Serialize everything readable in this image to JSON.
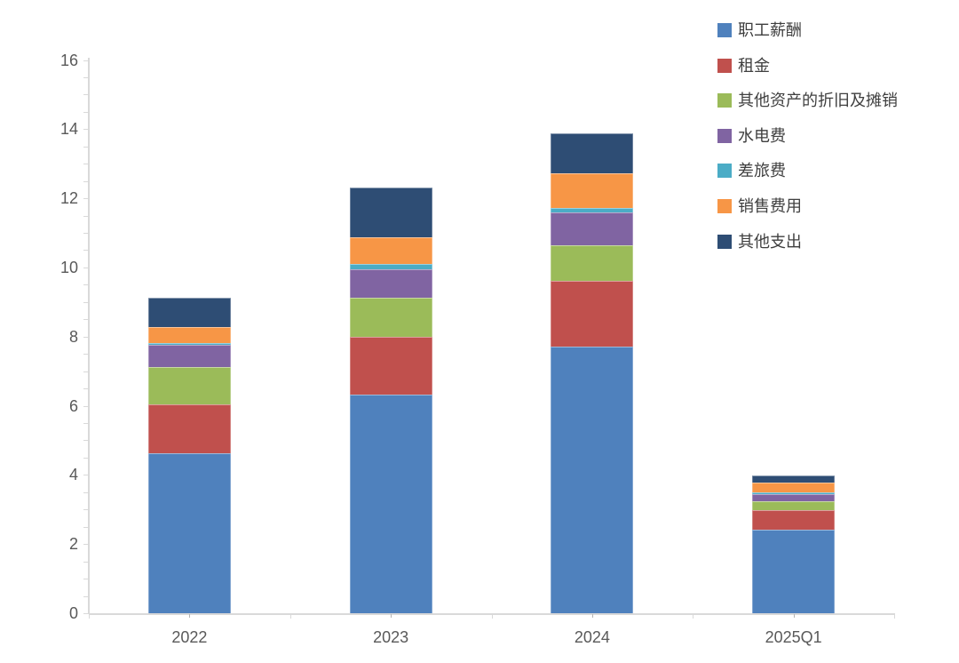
{
  "chart_data": {
    "type": "bar",
    "stacked": true,
    "title": "",
    "xlabel": "",
    "ylabel": "",
    "categories": [
      "2022",
      "2023",
      "2024",
      "2025Q1"
    ],
    "series": [
      {
        "name": "职工薪酬",
        "color": "#4F81BD",
        "values": [
          4.63,
          6.32,
          7.72,
          2.42
        ]
      },
      {
        "name": "租金",
        "color": "#C0504D",
        "values": [
          1.4,
          1.68,
          1.9,
          0.55
        ]
      },
      {
        "name": "其他资产的折旧及摊销",
        "color": "#9BBB59",
        "values": [
          1.1,
          1.12,
          1.02,
          0.26
        ]
      },
      {
        "name": "水电费",
        "color": "#8064A2",
        "values": [
          0.62,
          0.84,
          0.95,
          0.22
        ]
      },
      {
        "name": "差旅费",
        "color": "#4BACC6",
        "values": [
          0.06,
          0.14,
          0.13,
          0.05
        ]
      },
      {
        "name": "销售费用",
        "color": "#F79646",
        "values": [
          0.47,
          0.76,
          1.01,
          0.27
        ]
      },
      {
        "name": "其他支出",
        "color": "#2E4D74",
        "values": [
          0.84,
          1.44,
          1.15,
          0.21
        ]
      }
    ],
    "stack_totals": [
      9.12,
      12.3,
      13.88,
      3.98
    ],
    "ylim": [
      0,
      16
    ],
    "y_tick_step": 2,
    "y_minor_tick_step": 0.5,
    "y_tick_labels": [
      "0",
      "2",
      "4",
      "6",
      "8",
      "10",
      "12",
      "14",
      "16"
    ],
    "grid": false,
    "legend_position": "top-right"
  },
  "colors": {
    "background": "#FFFFFF",
    "axis_line": "#D9D9D9",
    "minor_tick": "#D9D9D9",
    "axis_text": "#595959",
    "legend_text": "#3F3F3F"
  }
}
